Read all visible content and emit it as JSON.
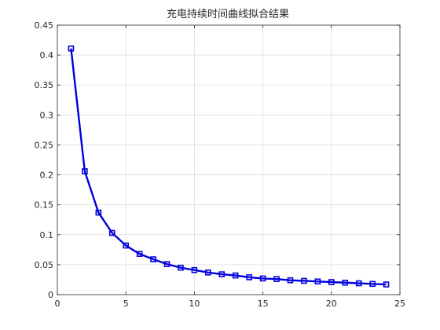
{
  "chart_data": {
    "type": "line",
    "title": "充电持续时间曲线拟合结果",
    "xlabel": "",
    "ylabel": "",
    "xlim": [
      0,
      25
    ],
    "ylim": [
      0,
      0.45
    ],
    "grid": true,
    "xticks": [
      0,
      5,
      10,
      15,
      20,
      25
    ],
    "yticks": [
      0,
      0.05,
      0.1,
      0.15,
      0.2,
      0.25,
      0.3,
      0.35,
      0.4,
      0.45
    ],
    "series": [
      {
        "color": "#0000dd",
        "marker": "square",
        "x": [
          1,
          2,
          3,
          4,
          5,
          6,
          7,
          8,
          9,
          10,
          11,
          12,
          13,
          14,
          15,
          16,
          17,
          18,
          19,
          20,
          21,
          22,
          23,
          24
        ],
        "y": [
          0.411,
          0.206,
          0.137,
          0.103,
          0.082,
          0.068,
          0.059,
          0.051,
          0.045,
          0.041,
          0.037,
          0.034,
          0.032,
          0.029,
          0.027,
          0.026,
          0.024,
          0.023,
          0.022,
          0.021,
          0.02,
          0.019,
          0.018,
          0.017
        ]
      }
    ]
  }
}
